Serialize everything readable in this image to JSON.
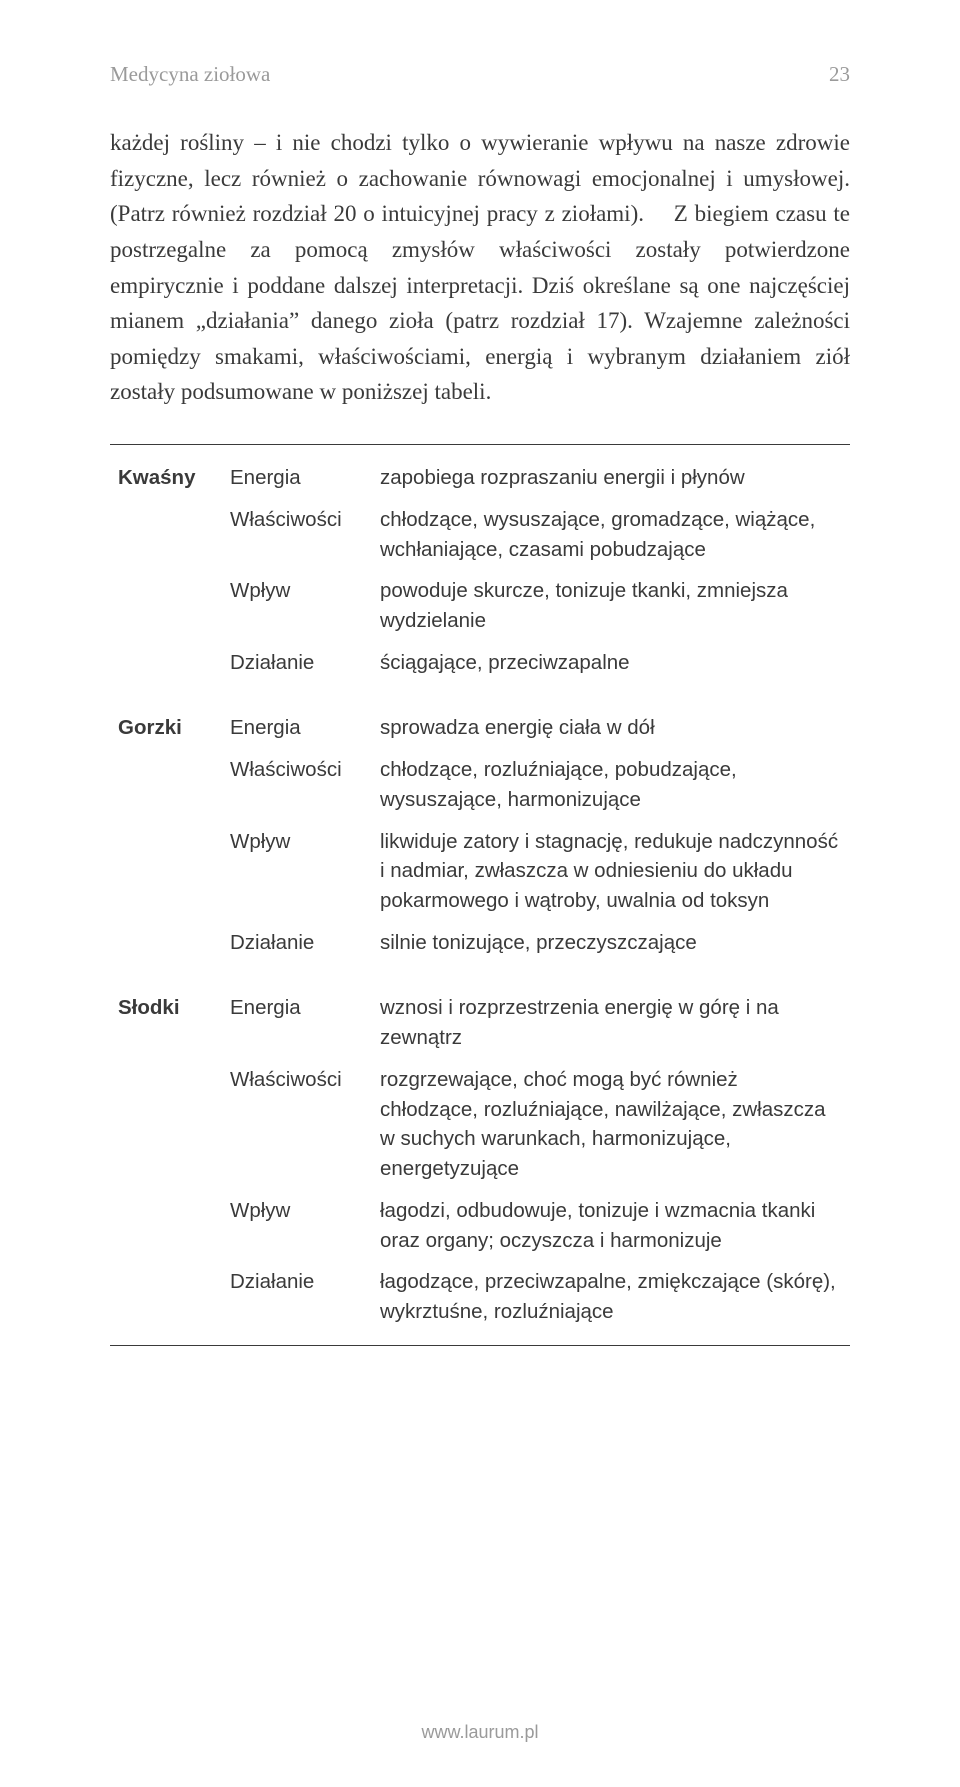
{
  "header": {
    "title": "Medycyna ziołowa",
    "page_number": "23"
  },
  "paragraph": "każdej rośliny – i nie chodzi tylko o wywieranie wpływu na nasze zdrowie fizyczne, lecz również o zachowanie równowagi emocjonalnej i umysłowej. (Patrz również rozdział 20 o intuicyjnej pracy z ziołami).\n Z biegiem czasu te postrzegalne za pomocą zmysłów właściwości zostały potwierdzone empirycznie i poddane dalszej interpretacji. Dziś określane są one najczęściej mianem „działania” danego zioła (patrz rozdział 17). Wzajemne zależności pomiędzy smakami, właściwościami, energią i wybranym działaniem ziół zostały podsumowane w poniższej tabeli.",
  "table": {
    "col_widths": {
      "taste": "120px",
      "attr": "150px"
    },
    "groups": [
      {
        "taste": "Kwaśny",
        "rows": [
          {
            "attr": "Energia",
            "desc": "zapobiega rozpraszaniu energii i płynów"
          },
          {
            "attr": "Właściwości",
            "desc": "chłodzące, wysuszające, gromadzące, wiążące, wchłaniające, czasami pobudzające"
          },
          {
            "attr": "Wpływ",
            "desc": "powoduje skurcze, tonizuje tkanki, zmniejsza wydzielanie"
          },
          {
            "attr": "Działanie",
            "desc": "ściągające, przeciwzapalne"
          }
        ]
      },
      {
        "taste": "Gorzki",
        "rows": [
          {
            "attr": "Energia",
            "desc": "sprowadza energię ciała w dół"
          },
          {
            "attr": "Właściwości",
            "desc": "chłodzące, rozluźniające, pobudzające, wysuszające, harmonizujące"
          },
          {
            "attr": "Wpływ",
            "desc": "likwiduje zatory i stagnację, redukuje nadczynność i nadmiar, zwłaszcza w odniesieniu do układu pokarmowego i wątroby, uwalnia od toksyn"
          },
          {
            "attr": "Działanie",
            "desc": "silnie tonizujące, przeczyszczające"
          }
        ]
      },
      {
        "taste": "Słodki",
        "rows": [
          {
            "attr": "Energia",
            "desc": "wznosi i rozprzestrzenia energię w górę i na zewnątrz"
          },
          {
            "attr": "Właściwości",
            "desc": "rozgrzewające, choć mogą być również chłodzące, rozluźniające, nawilżające, zwłaszcza w suchych warunkach, harmonizujące, energetyzujące"
          },
          {
            "attr": "Wpływ",
            "desc": "łagodzi, odbudowuje, tonizuje i wzmacnia tkanki oraz organy; oczyszcza i harmonizuje"
          },
          {
            "attr": "Działanie",
            "desc": "łagodzące, przeciwzapalne, zmiękczające (skórę), wykrztuśne, rozluźniające"
          }
        ]
      }
    ]
  },
  "footer": {
    "url": "www.laurum.pl"
  },
  "colors": {
    "text": "#3a3a3a",
    "muted": "#9a9a9a",
    "background": "#ffffff",
    "border": "#3a3a3a"
  },
  "typography": {
    "body_fontsize_pt": 17,
    "table_fontsize_pt": 15,
    "header_fontsize_pt": 16,
    "body_font": "Georgia",
    "table_font": "Arial"
  }
}
